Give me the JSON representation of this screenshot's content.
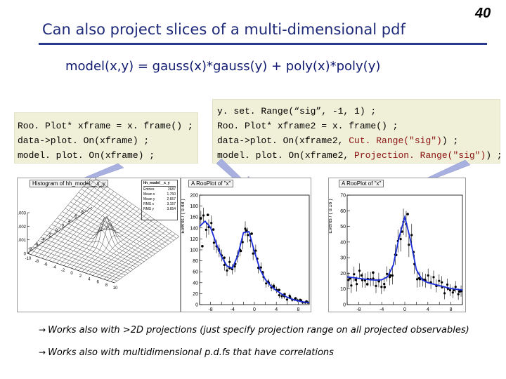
{
  "slide": {
    "title": "Can also project slices of a multi-dimensional pdf",
    "number": "40",
    "subtitle": "model(x,y) = gauss(x)*gauss(y) + poly(x)*poly(y)"
  },
  "code_left": {
    "lines": [
      "Roo. Plot* xframe = x. frame() ;",
      "data->plot. On(xframe) ;",
      "model. plot. On(xframe) ;"
    ]
  },
  "code_right": {
    "line1": "y. set. Range(“sig”, -1, 1) ;",
    "line2": "Roo. Plot* xframe2 = x. frame() ;",
    "line3_prefix": "data->plot. On(xframe2, ",
    "line3_call": "Cut. Range(\"sig\")",
    "line3_suffix": ") ;",
    "line4_prefix": "model. plot. On(xframe2, ",
    "line4_call": "Projection. Range(\"sig\")",
    "line4_suffix": ") ;"
  },
  "colors": {
    "title": "#1f2a78",
    "rule": "#2b3a8c",
    "code_bg": "#f0f0d8",
    "code_string": "#8a1010",
    "arrow": "#a8b0e0",
    "curve": "#1a2bd8"
  },
  "plot3d": {
    "title": "Histogram of hh_model__x_y",
    "stats": {
      "name": "hh_model__x_y",
      "rows": [
        {
          "label": "Entries",
          "value": "2687"
        },
        {
          "label": "Mean x",
          "value": "1.760"
        },
        {
          "label": "Mean y",
          "value": "2.657"
        },
        {
          "label": "RMS x",
          "value": "3.157"
        },
        {
          "label": "RMS y",
          "value": "3.654"
        }
      ]
    },
    "zlabel": "Events / (0.8,0.8)",
    "zticks": [
      "0",
      "0.001",
      "0.002",
      "0.003"
    ],
    "x_ticks": [
      "-10",
      "-8",
      "-6",
      "-4",
      "-2",
      "0",
      "2",
      "4",
      "6",
      "8",
      "10"
    ],
    "y_ticks": [
      "8",
      "6",
      "4",
      "2",
      "0",
      "-2",
      "-4",
      "-6",
      "-8"
    ]
  },
  "chart_data": [
    {
      "type": "scatter",
      "title": "A RooPlot of \"x\"",
      "xlabel": "x",
      "ylabel": "Events / ( 0.48 )",
      "xlim": [
        -10,
        10
      ],
      "ylim": [
        0,
        210
      ],
      "x_ticks": [
        "-10",
        "-8",
        "-6",
        "-4",
        "-2",
        "0",
        "2",
        "4",
        "6",
        "8",
        "10"
      ],
      "y_ticks": [
        "0",
        "20",
        "40",
        "60",
        "80",
        "100",
        "120",
        "140",
        "160",
        "180",
        "200"
      ],
      "series": [
        {
          "name": "data",
          "x": [
            -9.5,
            -8.5,
            -7.5,
            -6.5,
            -5.5,
            -4.5,
            -3.5,
            -2.5,
            -1.5,
            -0.5,
            0.5,
            1.5,
            2.5,
            3.5,
            4.5,
            5.5,
            6.5,
            7.5,
            8.5,
            9.5
          ],
          "values": [
            112,
            172,
            144,
            106,
            90,
            70,
            78,
            103,
            142,
            136,
            88,
            62,
            44,
            36,
            28,
            20,
            14,
            12,
            8,
            6
          ]
        },
        {
          "name": "model",
          "x": [
            -10,
            -9,
            -8,
            -7,
            -6,
            -5,
            -4,
            -3,
            -2,
            -1,
            0,
            1,
            2,
            3,
            4,
            5,
            6,
            7,
            8,
            9,
            10
          ],
          "values": [
            150,
            160,
            148,
            118,
            92,
            74,
            70,
            95,
            138,
            140,
            102,
            68,
            48,
            36,
            27,
            20,
            14,
            10,
            7,
            5,
            4
          ]
        }
      ]
    },
    {
      "type": "scatter",
      "title": "A RooPlot of \"x\"",
      "xlabel": "x",
      "ylabel": "Events / ( 0.16 )",
      "xlim": [
        -10,
        10
      ],
      "ylim": [
        0,
        75
      ],
      "x_ticks": [
        "-10",
        "-8",
        "-6",
        "-4",
        "-2",
        "0",
        "2",
        "4",
        "6",
        "8",
        "10"
      ],
      "y_ticks": [
        "0",
        "10",
        "20",
        "30",
        "40",
        "50",
        "60",
        "70"
      ],
      "series": [
        {
          "name": "data",
          "x": [
            -9.5,
            -8.5,
            -7.5,
            -6.5,
            -5.5,
            -4.5,
            -3.5,
            -2.5,
            -1.5,
            -0.5,
            0.5,
            1.5,
            2.5,
            3.5,
            4.5,
            5.5,
            6.5,
            7.5,
            8.5,
            9.5
          ],
          "values": [
            18,
            17,
            20,
            14,
            22,
            16,
            12,
            20,
            34,
            50,
            62,
            36,
            18,
            17,
            15,
            13,
            12,
            11,
            10,
            9
          ]
        },
        {
          "name": "model",
          "x": [
            -10,
            -9,
            -8,
            -7,
            -6,
            -5,
            -4,
            -3,
            -2,
            -1,
            0,
            1,
            2,
            3,
            4,
            5,
            6,
            7,
            8,
            9,
            10
          ],
          "values": [
            19,
            18.5,
            18,
            17.5,
            17,
            16.8,
            17,
            19,
            27,
            46,
            60,
            44,
            24,
            17,
            15,
            14,
            13,
            12,
            11,
            10.5,
            10
          ]
        }
      ]
    }
  ],
  "notes": [
    "Works also with >2D projections (just specify projection range on all projected observables)",
    "Works also with multidimensional p.d.fs that have correlations"
  ]
}
